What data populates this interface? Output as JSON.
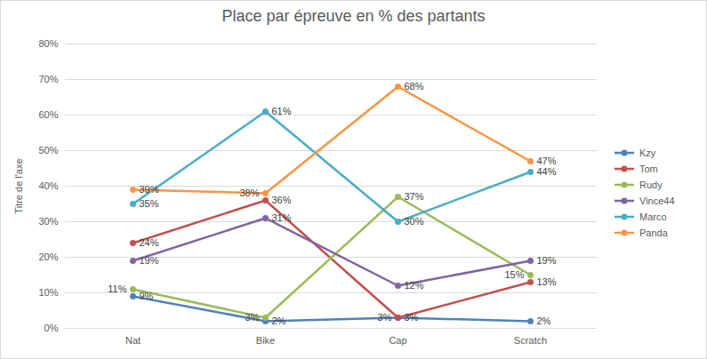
{
  "chart_data": {
    "type": "line",
    "title": "Place par épreuve en % des partants",
    "ylabel": "Titre de l'axe",
    "categories": [
      "Nat",
      "Bike",
      "Cap",
      "Scratch"
    ],
    "ylim": [
      0,
      80
    ],
    "yticks": [
      {
        "value": 0,
        "label": "0%"
      },
      {
        "value": 10,
        "label": "10%"
      },
      {
        "value": 20,
        "label": "20%"
      },
      {
        "value": 30,
        "label": "30%"
      },
      {
        "value": 40,
        "label": "40%"
      },
      {
        "value": 50,
        "label": "50%"
      },
      {
        "value": 60,
        "label": "60%"
      },
      {
        "value": 70,
        "label": "70%"
      },
      {
        "value": 80,
        "label": "80%"
      }
    ],
    "grid": true,
    "legend": "right",
    "data_labels": true,
    "marker": "circle",
    "series": [
      {
        "name": "Kzy",
        "color": "#4F81BD",
        "values": [
          9,
          2,
          3,
          2
        ],
        "value_labels": [
          "9%",
          "2%",
          "3%",
          "2%"
        ]
      },
      {
        "name": "Tom",
        "color": "#C0504D",
        "values": [
          24,
          36,
          3,
          13
        ],
        "value_labels": [
          "24%",
          "36%",
          "3%",
          "13%"
        ]
      },
      {
        "name": "Rudy",
        "color": "#9BBB59",
        "values": [
          11,
          3,
          37,
          15
        ],
        "value_labels": [
          "11%",
          "3%",
          "37%",
          "15%"
        ]
      },
      {
        "name": "Vince44",
        "color": "#8064A2",
        "values": [
          19,
          31,
          12,
          19
        ],
        "value_labels": [
          "19%",
          "31%",
          "12%",
          "19%"
        ]
      },
      {
        "name": "Marco",
        "color": "#4BACC6",
        "values": [
          35,
          61,
          30,
          44
        ],
        "value_labels": [
          "35%",
          "61%",
          "30%",
          "44%"
        ]
      },
      {
        "name": "Panda",
        "color": "#F79646",
        "values": [
          39,
          38,
          68,
          47
        ],
        "value_labels": [
          "39%",
          "38%",
          "68%",
          "47%"
        ]
      }
    ]
  }
}
